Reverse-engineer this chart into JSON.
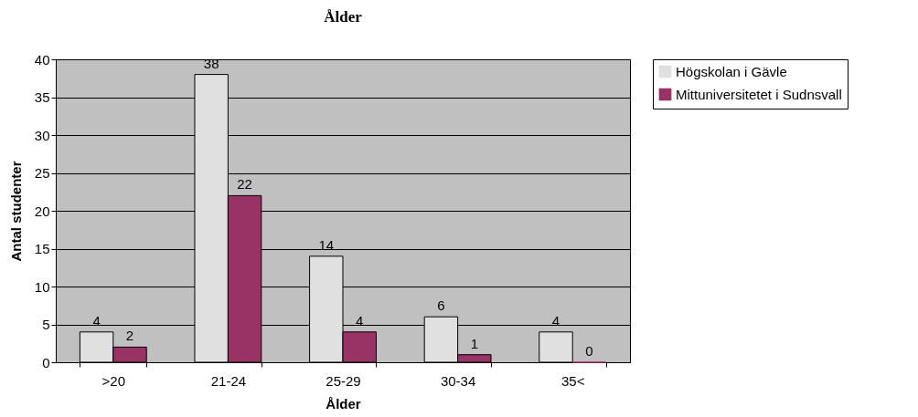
{
  "chart_data": {
    "type": "bar",
    "title": "Ålder",
    "xlabel": "Ålder",
    "ylabel": "Antal studenter",
    "categories": [
      ">20",
      "21-24",
      "25-29",
      "30-34",
      "35<"
    ],
    "series": [
      {
        "name": "Högskolan i Gävle",
        "color": "#e0e0e0",
        "values": [
          4,
          38,
          14,
          6,
          4
        ]
      },
      {
        "name": "Mittuniversitetet i Sudnsvall",
        "color": "#993366",
        "values": [
          2,
          22,
          4,
          1,
          0
        ]
      }
    ],
    "ylim": [
      0,
      40
    ],
    "yticks": [
      0,
      5,
      10,
      15,
      20,
      25,
      30,
      35,
      40
    ],
    "grid": "y",
    "legend": "right",
    "data_labels": true
  }
}
